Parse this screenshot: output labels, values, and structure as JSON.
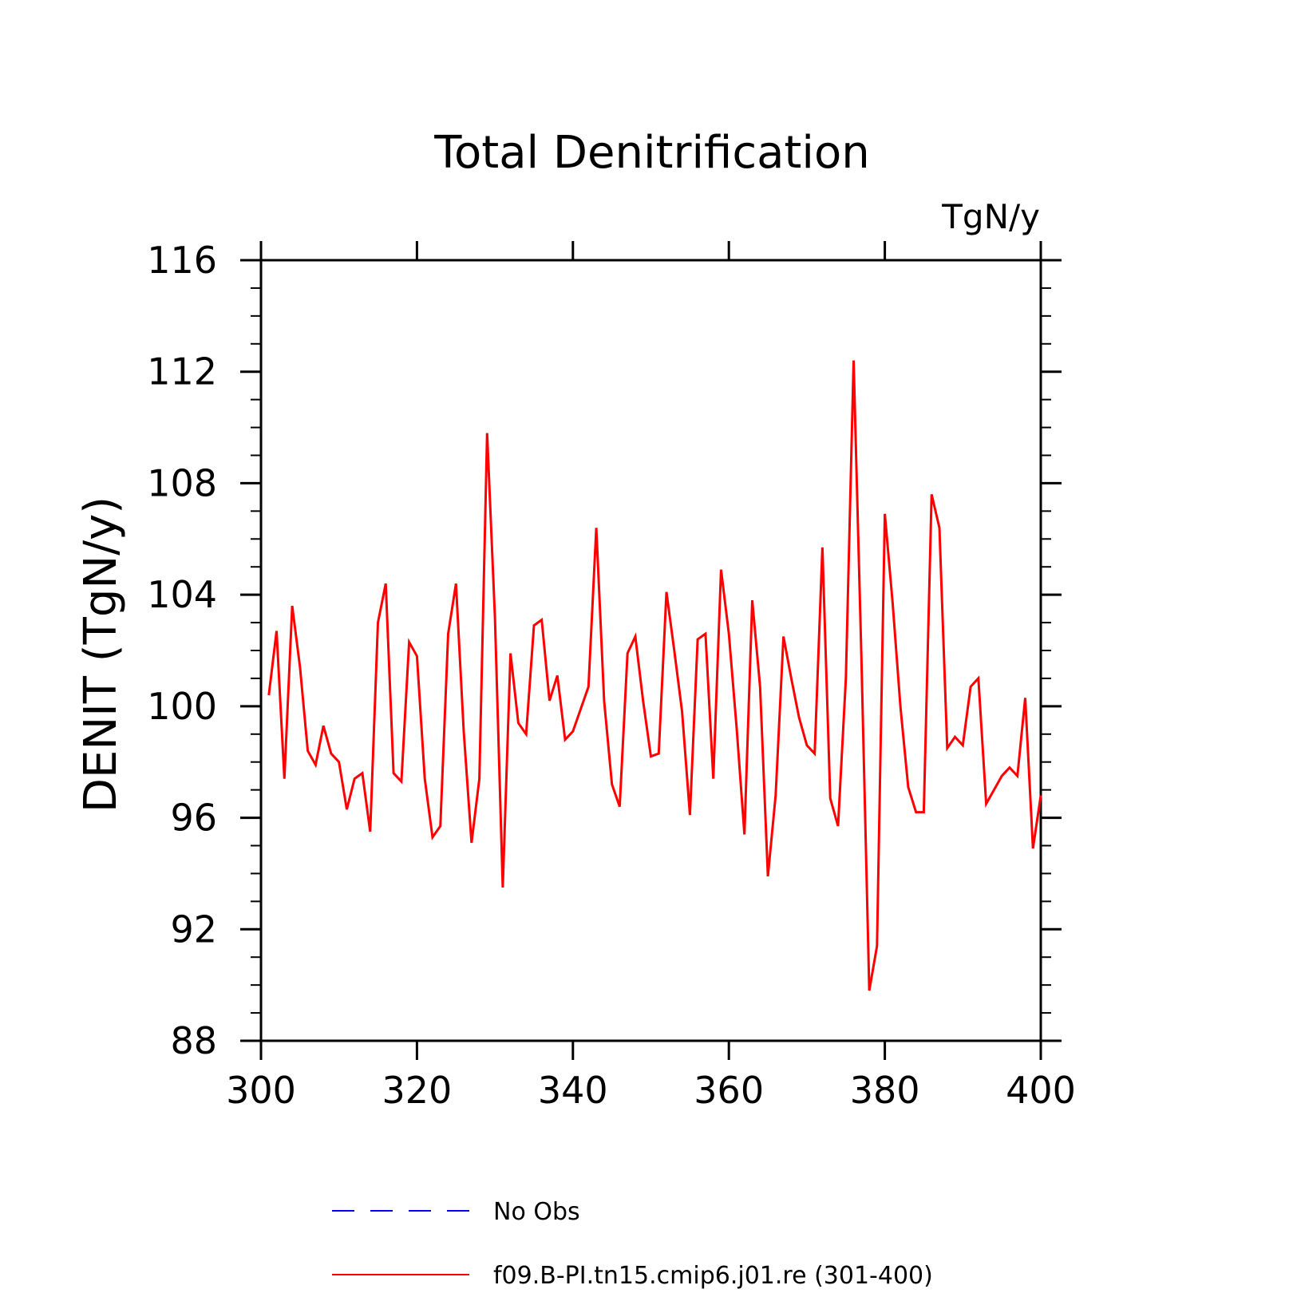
{
  "chart_data": {
    "type": "line",
    "title": "Total Denitrification",
    "units_label": "TgN/y",
    "ylabel": "DENIT  (TgN/y)",
    "xlabel": "",
    "xlim": [
      300,
      400
    ],
    "ylim": [
      88,
      116
    ],
    "x_ticks": [
      "300",
      "320",
      "340",
      "360",
      "380",
      "400"
    ],
    "y_ticks": [
      "88",
      "92",
      "96",
      "100",
      "104",
      "108",
      "112",
      "116"
    ],
    "grid": false,
    "legend_position": "bottom",
    "series": [
      {
        "name": "No Obs",
        "color": "#0000ff",
        "style": "dashed",
        "x": [],
        "values": []
      },
      {
        "name": "f09.B-PI.tn15.cmip6.j01.re (301-400)",
        "color": "#ff0000",
        "style": "solid",
        "x": [
          301,
          302,
          303,
          304,
          305,
          306,
          307,
          308,
          309,
          310,
          311,
          312,
          313,
          314,
          315,
          316,
          317,
          318,
          319,
          320,
          321,
          322,
          323,
          324,
          325,
          326,
          327,
          328,
          329,
          330,
          331,
          332,
          333,
          334,
          335,
          336,
          337,
          338,
          339,
          340,
          341,
          342,
          343,
          344,
          345,
          346,
          347,
          348,
          349,
          350,
          351,
          352,
          353,
          354,
          355,
          356,
          357,
          358,
          359,
          360,
          361,
          362,
          363,
          364,
          365,
          366,
          367,
          368,
          369,
          370,
          371,
          372,
          373,
          374,
          375,
          376,
          377,
          378,
          379,
          380,
          381,
          382,
          383,
          384,
          385,
          386,
          387,
          388,
          389,
          390,
          391,
          392,
          393,
          394,
          395,
          396,
          397,
          398,
          399,
          400
        ],
        "values": [
          100.4,
          102.7,
          97.4,
          103.6,
          101.4,
          98.4,
          97.9,
          99.3,
          98.3,
          98.0,
          96.3,
          97.4,
          97.6,
          95.5,
          103.0,
          104.4,
          97.6,
          97.3,
          102.3,
          101.8,
          97.4,
          95.3,
          95.7,
          102.6,
          104.4,
          99.1,
          95.1,
          97.4,
          109.8,
          103.2,
          93.5,
          101.9,
          99.4,
          99.0,
          102.9,
          103.1,
          100.2,
          101.1,
          98.8,
          99.1,
          99.9,
          100.7,
          106.4,
          100.2,
          97.2,
          96.4,
          101.9,
          102.5,
          100.2,
          98.2,
          98.3,
          104.1,
          102.0,
          99.8,
          96.1,
          102.4,
          102.6,
          97.4,
          104.9,
          102.6,
          99.2,
          95.4,
          103.8,
          100.7,
          93.9,
          96.8,
          102.5,
          101.0,
          99.6,
          98.6,
          98.3,
          105.7,
          96.7,
          95.7,
          101.0,
          112.4,
          101.7,
          89.8,
          91.4,
          106.9,
          103.7,
          100.0,
          97.1,
          96.2,
          96.2,
          107.6,
          106.4,
          98.5,
          98.9,
          98.6,
          100.7,
          101.0,
          96.5,
          97.0,
          97.5,
          97.8,
          97.5,
          100.3,
          94.9,
          96.8
        ]
      }
    ]
  }
}
